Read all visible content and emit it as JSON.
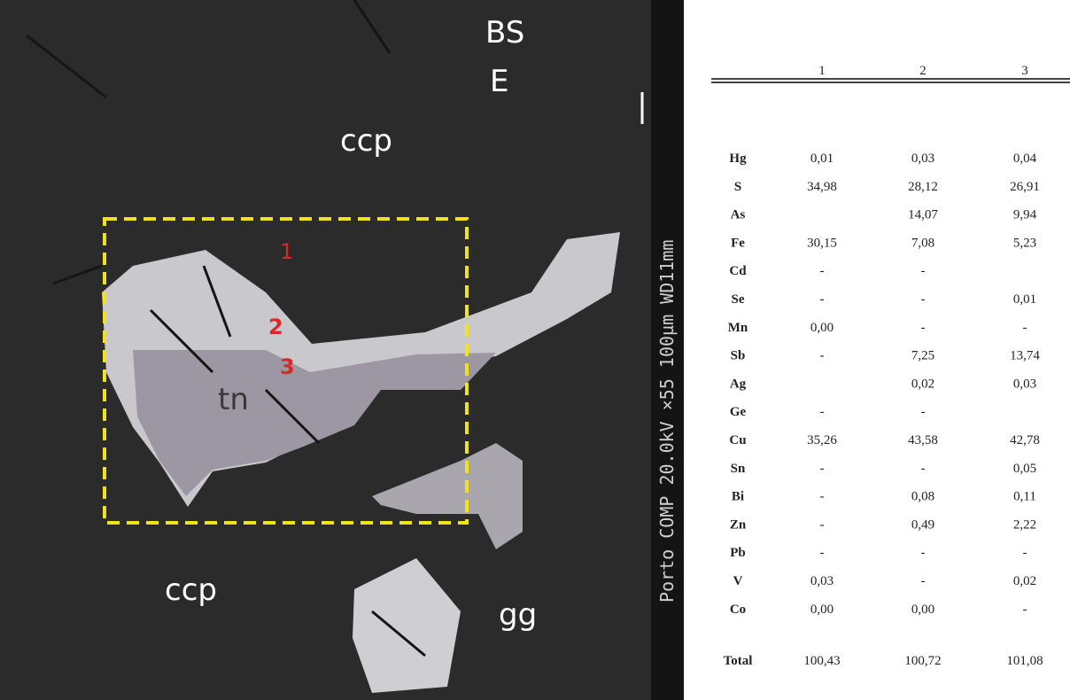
{
  "image": {
    "info": "Porto COMP 20.0kV ×55 100µm WD11mm",
    "labels": {
      "bse_1": "BS",
      "bse_2": "E",
      "ccp_top": "ccp",
      "point_1": "1",
      "point_2": "2",
      "point_3": "3",
      "tn": "tn",
      "ccp_bottom": "ccp",
      "gg": "gg"
    }
  },
  "table": {
    "columns": [
      "1",
      "2",
      "3"
    ],
    "rows": [
      [
        "Hg",
        "0,01",
        "0,03",
        "0,04"
      ],
      [
        "S",
        "34,98",
        "28,12",
        "26,91"
      ],
      [
        "As",
        null,
        "14,07",
        "9,94"
      ],
      [
        "Fe",
        "30,15",
        "7,08",
        "5,23"
      ],
      [
        "Cd",
        "-",
        "-",
        null
      ],
      [
        "Se",
        "-",
        "-",
        "0,01"
      ],
      [
        "Mn",
        "0,00",
        "-",
        "-"
      ],
      [
        "Sb",
        "-",
        "7,25",
        "13,74"
      ],
      [
        "Ag",
        null,
        "0,02",
        "0,03"
      ],
      [
        "Ge",
        "-",
        "-",
        null
      ],
      [
        "Cu",
        "35,26",
        "43,58",
        "42,78"
      ],
      [
        "Sn",
        "-",
        "-",
        "0,05"
      ],
      [
        "Bi",
        "-",
        "0,08",
        "0,11"
      ],
      [
        "Zn",
        "-",
        "0,49",
        "2,22"
      ],
      [
        "Pb",
        "-",
        "-",
        "-"
      ],
      [
        "V",
        "0,03",
        "-",
        "0,02"
      ],
      [
        "Co",
        "0,00",
        "0,00",
        "-"
      ]
    ],
    "total": [
      "Total",
      "100,43",
      "100,72",
      "101,08"
    ]
  }
}
